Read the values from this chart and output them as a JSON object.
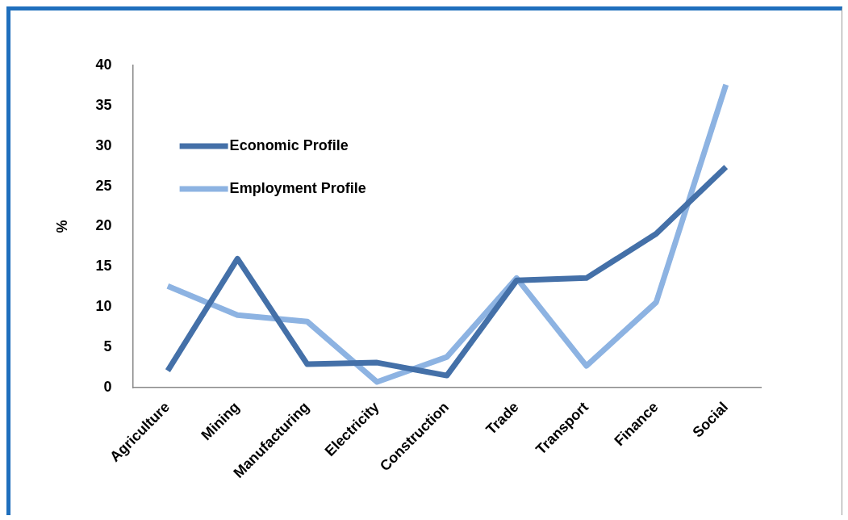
{
  "chart_data": {
    "type": "line",
    "ylabel": "%",
    "categories": [
      "Agriculture",
      "Mining",
      "Manufacturing",
      "Electricity",
      "Construction",
      "Trade",
      "Transport",
      "Finance",
      "Social"
    ],
    "series": [
      {
        "name": "Economic Profile",
        "color": "#4470a8",
        "values": [
          2.1,
          16,
          2.9,
          3.1,
          1.5,
          13.3,
          13.6,
          19.1,
          27.4
        ]
      },
      {
        "name": "Employment Profile",
        "color": "#8db3e2",
        "values": [
          12.6,
          9.0,
          8.2,
          0.7,
          3.8,
          13.6,
          2.7,
          10.6,
          37.6
        ]
      }
    ],
    "ylim": [
      0,
      40
    ],
    "yticks": [
      0,
      5,
      10,
      15,
      20,
      25,
      30,
      35,
      40
    ],
    "grid": false,
    "legend": "top left",
    "marker": "none",
    "line_style": "solid"
  }
}
